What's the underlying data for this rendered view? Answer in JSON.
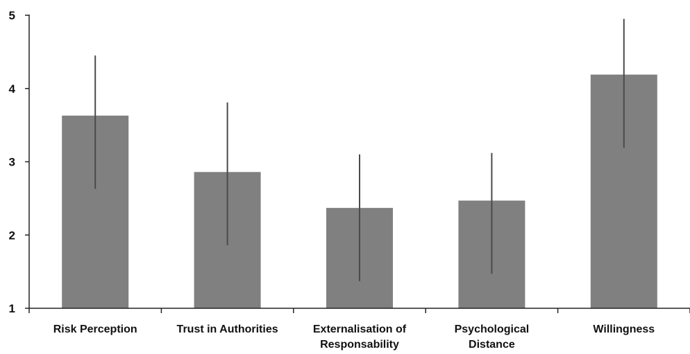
{
  "chart_data": {
    "type": "bar",
    "title": "",
    "xlabel": "",
    "ylabel": "",
    "ylim": [
      1,
      5
    ],
    "yticks": [
      1,
      2,
      3,
      4,
      5
    ],
    "grid": false,
    "legend": "none",
    "bar_color": "#808080",
    "error_bar_color": "#4a4a4a",
    "axis_color": "#222222",
    "categories": [
      [
        "Risk Perception"
      ],
      [
        "Trust in Authorities"
      ],
      [
        "Externalisation of",
        "Responsability"
      ],
      [
        "Psychological",
        "Distance"
      ],
      [
        "Willingness"
      ]
    ],
    "values": [
      3.63,
      2.86,
      2.37,
      2.47,
      4.19
    ],
    "error_bars": [
      {
        "low": 2.63,
        "high": 4.45
      },
      {
        "low": 1.86,
        "high": 3.81
      },
      {
        "low": 1.37,
        "high": 3.1
      },
      {
        "low": 1.47,
        "high": 3.12
      },
      {
        "low": 3.19,
        "high": 4.95
      }
    ]
  }
}
